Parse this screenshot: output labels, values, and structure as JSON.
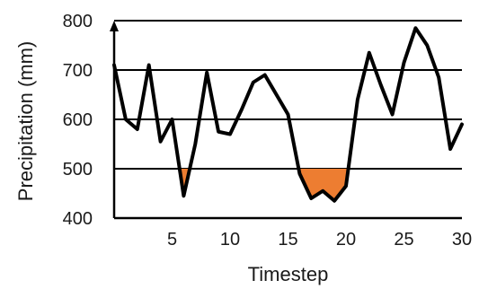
{
  "chart_data": {
    "type": "line",
    "xlabel": "Timestep",
    "ylabel": "Precipitation (mm)",
    "xlim": [
      0,
      30
    ],
    "ylim": [
      400,
      800
    ],
    "x_ticks": [
      5,
      10,
      15,
      20,
      25,
      30
    ],
    "y_ticks": [
      400,
      500,
      600,
      700,
      800
    ],
    "grid": "horizontal",
    "threshold": 500,
    "threshold_fill_color": "#ED7D31",
    "line_color": "#000000",
    "series": [
      {
        "x": [
          0,
          1,
          2,
          3,
          4,
          5,
          6,
          7,
          8,
          9,
          10,
          11,
          12,
          13,
          14,
          15,
          16,
          17,
          18,
          19,
          20,
          21,
          22,
          23,
          24,
          25,
          26,
          27,
          28,
          29,
          30
        ],
        "values": [
          710,
          600,
          580,
          710,
          555,
          600,
          445,
          550,
          695,
          575,
          570,
          620,
          675,
          690,
          650,
          610,
          490,
          440,
          455,
          435,
          465,
          640,
          735,
          670,
          610,
          715,
          785,
          750,
          685,
          540,
          590
        ]
      }
    ]
  }
}
